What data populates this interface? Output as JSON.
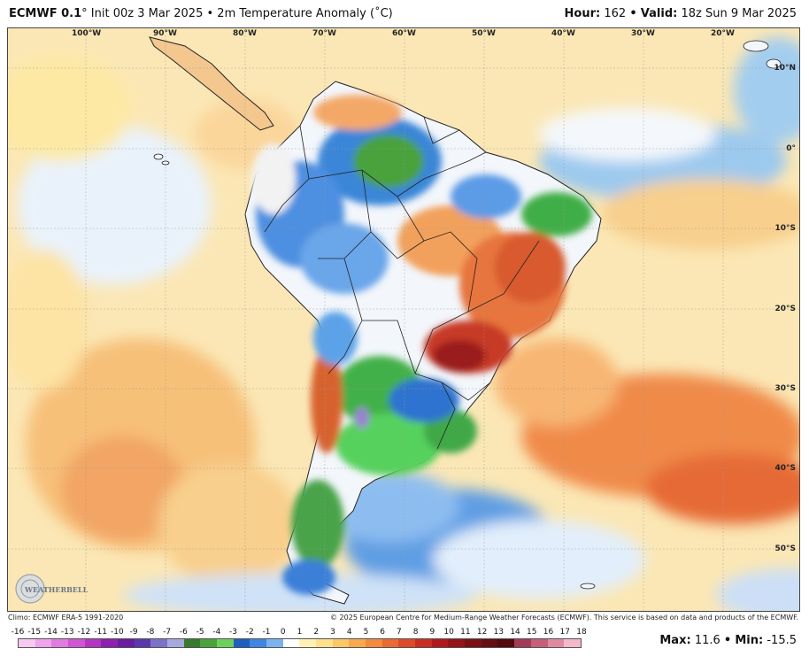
{
  "header": {
    "model": "ECMWF 0.1",
    "degree_mark": "°",
    "init": "Init 00z 3 Mar 2025",
    "separator": "•",
    "product": "2m Temperature Anomaly (˚C)",
    "hour_label": "Hour:",
    "hour_value": "162",
    "valid_label": "Valid:",
    "valid_value": "18z Sun 9 Mar 2025"
  },
  "map": {
    "longitude_labels": [
      "100°W",
      "90°W",
      "80°W",
      "70°W",
      "60°W",
      "50°W",
      "40°W",
      "30°W",
      "20°W"
    ],
    "latitude_labels": [
      "10°N",
      "0°",
      "10°S",
      "20°S",
      "30°S",
      "40°S",
      "50°S"
    ],
    "logo_text": "WEATHERBELL"
  },
  "footer": {
    "climo": "Climo: ECMWF ERA-5 1991-2020",
    "copyright": "© 2025 European Centre for Medium-Range Weather Forecasts (ECMWF). This service is based on data and products of the ECMWF."
  },
  "colorbar": {
    "labels": [
      "-16",
      "-15",
      "-14",
      "-13",
      "-12",
      "-11",
      "-10",
      "-9",
      "-8",
      "-7",
      "-6",
      "-5",
      "-4",
      "-3",
      "-2",
      "-1",
      "0",
      "1",
      "2",
      "3",
      "4",
      "5",
      "6",
      "7",
      "8",
      "9",
      "10",
      "11",
      "12",
      "13",
      "14",
      "15",
      "16",
      "17",
      "18"
    ],
    "colors": [
      "#f7c8f0",
      "#f0a2ea",
      "#e27be0",
      "#cf55d4",
      "#b335c3",
      "#8e1fb0",
      "#6a1d9e",
      "#5b39ad",
      "#7e72c8",
      "#a7a8dc",
      "#3a7a2f",
      "#4aa23b",
      "#6bd15b",
      "#1e5fbf",
      "#3f86e0",
      "#79b3ef",
      "#ffffff",
      "#fff0b8",
      "#fde08a",
      "#fbc867",
      "#f8a94d",
      "#f38a3f",
      "#ea6a33",
      "#dc4b29",
      "#c92e22",
      "#b01a1d",
      "#951419",
      "#7a1015",
      "#650d12",
      "#520a0e",
      "#a33a57",
      "#c65e7b",
      "#e08aa0",
      "#f2b9c8"
    ]
  },
  "stats": {
    "max_label": "Max:",
    "max_value": "11.6",
    "min_label": "Min:",
    "min_value": "-15.5",
    "separator": "•"
  }
}
